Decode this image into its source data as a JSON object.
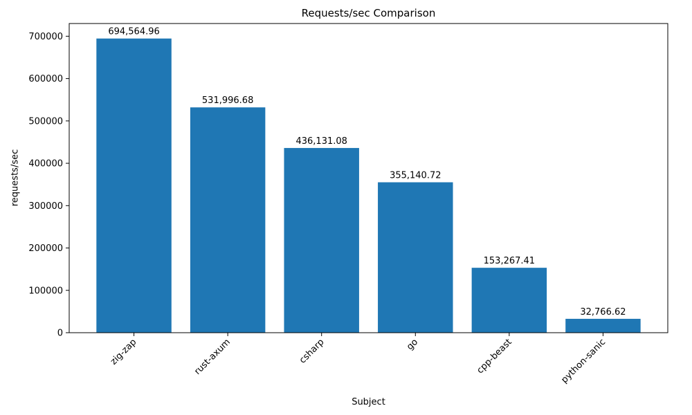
{
  "figure": {
    "title": "Requests/sec Comparison",
    "xlabel": "Subject",
    "ylabel": "requests/sec"
  },
  "chart_data": {
    "type": "bar",
    "title": "Requests/sec Comparison",
    "xlabel": "Subject",
    "ylabel": "requests/sec",
    "categories": [
      "zig-zap",
      "rust-axum",
      "csharp",
      "go",
      "cpp-beast",
      "python-sanic"
    ],
    "values": [
      694564.96,
      531996.68,
      436131.08,
      355140.72,
      153267.41,
      32766.62
    ],
    "value_labels": [
      "694,564.96",
      "531,996.68",
      "436,131.08",
      "355,140.72",
      "153,267.41",
      "32,766.62"
    ],
    "ylim": [
      0,
      730000
    ],
    "yticks": [
      0,
      100000,
      200000,
      300000,
      400000,
      500000,
      600000,
      700000
    ],
    "ytick_labels": [
      "0",
      "100000",
      "200000",
      "300000",
      "400000",
      "500000",
      "600000",
      "700000"
    ],
    "bar_color": "#1f77b4",
    "axis_color": "#000000",
    "grid": false,
    "legend": "none",
    "xtick_rotation": 45
  }
}
